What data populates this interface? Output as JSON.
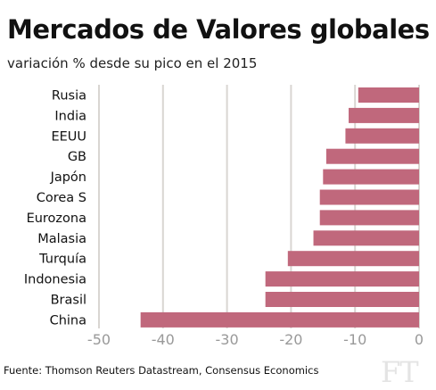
{
  "header": {
    "title": "Mercados de Valores globales",
    "subtitle": "variación % desde su pico en el 2015"
  },
  "footer": {
    "source": "Fuente: Thomson Reuters Datastream, Consensus Economics",
    "logo": "FT"
  },
  "colors": {
    "bar": "#c0687c",
    "grid": "#d9d6d2",
    "tick_text": "#999999"
  },
  "chart_data": {
    "type": "bar",
    "orientation": "horizontal",
    "title": "Mercados de Valores globales",
    "subtitle": "variación % desde su pico en el 2015",
    "categories": [
      "Rusia",
      "India",
      "EEUU",
      "GB",
      "Japón",
      "Corea S",
      "Eurozona",
      "Malasia",
      "Turquía",
      "Indonesia",
      "Brasil",
      "China"
    ],
    "values": [
      -9.5,
      -11,
      -11.5,
      -14.5,
      -15,
      -15.5,
      -15.5,
      -16.5,
      -20.5,
      -24,
      -24,
      -43.5
    ],
    "xlim": [
      -50,
      0
    ],
    "xticks": [
      -50,
      -40,
      -30,
      -20,
      -10,
      0
    ],
    "xtick_labels": [
      "-50",
      "-40",
      "-30",
      "-20",
      "-10",
      "0"
    ],
    "grid": true,
    "source": "Fuente: Thomson Reuters Datastream, Consensus Economics"
  }
}
